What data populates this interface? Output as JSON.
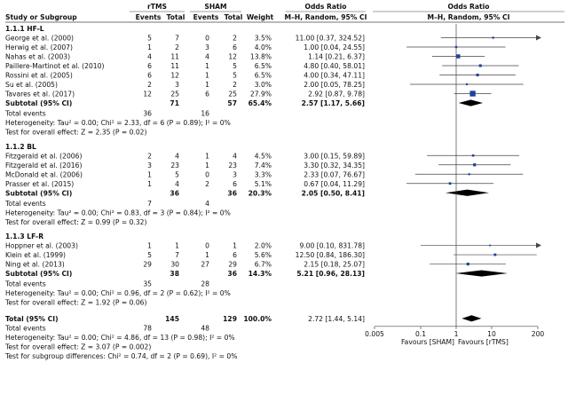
{
  "chart_data": {
    "type": "forest",
    "headers": {
      "group_rtms": "rTMS",
      "group_sham": "SHAM",
      "group_or_left": "Odds Ratio",
      "group_or_right": "Odds Ratio",
      "study": "Study or Subgroup",
      "events": "Events",
      "total": "Total",
      "events2": "Events",
      "total2": "Total",
      "weight": "Weight",
      "method_left": "M–H, Random, 95% CI",
      "method_right": "M–H, Random, 95% CI"
    },
    "subgroups": [
      {
        "label": "1.1.1 HF-L",
        "studies": [
          {
            "name": "George et al. (2000)",
            "e1": "5",
            "n1": "7",
            "e2": "0",
            "n2": "2",
            "w": "3.5%",
            "ci": "11.00 [0.37, 324.52]",
            "or": 11.0,
            "lo": 0.37,
            "hi": 324.52
          },
          {
            "name": "Herwig et al. (2007)",
            "e1": "1",
            "n1": "2",
            "e2": "3",
            "n2": "6",
            "w": "4.0%",
            "ci": "1.00 [0.04, 24.55]",
            "or": 1.0,
            "lo": 0.04,
            "hi": 24.55
          },
          {
            "name": "Nahas et al. (2003)",
            "e1": "4",
            "n1": "11",
            "e2": "4",
            "n2": "12",
            "w": "13.8%",
            "ci": "1.14 [0.21, 6.37]",
            "or": 1.14,
            "lo": 0.21,
            "hi": 6.37
          },
          {
            "name": "Paillere-Martinot et al. (2010)",
            "e1": "6",
            "n1": "11",
            "e2": "1",
            "n2": "5",
            "w": "6.5%",
            "ci": "4.80 [0.40, 58.01]",
            "or": 4.8,
            "lo": 0.4,
            "hi": 58.01
          },
          {
            "name": "Rossini et al. (2005)",
            "e1": "6",
            "n1": "12",
            "e2": "1",
            "n2": "5",
            "w": "6.5%",
            "ci": "4.00 [0.34, 47.11]",
            "or": 4.0,
            "lo": 0.34,
            "hi": 47.11
          },
          {
            "name": "Su et al. (2005)",
            "e1": "2",
            "n1": "3",
            "e2": "1",
            "n2": "2",
            "w": "3.0%",
            "ci": "2.00 [0.05, 78.25]",
            "or": 2.0,
            "lo": 0.05,
            "hi": 78.25
          },
          {
            "name": "Tavares et al. (2017)",
            "e1": "12",
            "n1": "25",
            "e2": "6",
            "n2": "25",
            "w": "27.9%",
            "ci": "2.92 [0.87, 9.78]",
            "or": 2.92,
            "lo": 0.87,
            "hi": 9.78
          }
        ],
        "subtotal": {
          "label": "Subtotal (95% CI)",
          "n1": "71",
          "n2": "57",
          "w": "65.4%",
          "ci": "2.57 [1.17, 5.66]",
          "or": 2.57,
          "lo": 1.17,
          "hi": 5.66
        },
        "events_label": "Total events",
        "ev1": "36",
        "ev2": "16",
        "heterogeneity": "Heterogeneity: Tau² = 0.00; Chi² = 2.33, df = 6 (P = 0.89); I² = 0%",
        "overall": "Test for overall effect: Z = 2.35 (P = 0.02)"
      },
      {
        "label": "1.1.2 BL",
        "studies": [
          {
            "name": "Fitzgerald et al. (2006)",
            "e1": "2",
            "n1": "4",
            "e2": "1",
            "n2": "4",
            "w": "4.5%",
            "ci": "3.00 [0.15, 59.89]",
            "or": 3.0,
            "lo": 0.15,
            "hi": 59.89
          },
          {
            "name": "Fitzgerald et al. (2016)",
            "e1": "3",
            "n1": "23",
            "e2": "1",
            "n2": "23",
            "w": "7.4%",
            "ci": "3.30 [0.32, 34.35]",
            "or": 3.3,
            "lo": 0.32,
            "hi": 34.35
          },
          {
            "name": "McDonald et al. (2006)",
            "e1": "1",
            "n1": "5",
            "e2": "0",
            "n2": "3",
            "w": "3.3%",
            "ci": "2.33 [0.07, 76.67]",
            "or": 2.33,
            "lo": 0.07,
            "hi": 76.67
          },
          {
            "name": "Prasser et al. (2015)",
            "e1": "1",
            "n1": "4",
            "e2": "2",
            "n2": "6",
            "w": "5.1%",
            "ci": "0.67 [0.04, 11.29]",
            "or": 0.67,
            "lo": 0.04,
            "hi": 11.29
          }
        ],
        "subtotal": {
          "label": "Subtotal (95% CI)",
          "n1": "36",
          "n2": "36",
          "w": "20.3%",
          "ci": "2.05 [0.50, 8.41]",
          "or": 2.05,
          "lo": 0.5,
          "hi": 8.41
        },
        "events_label": "Total events",
        "ev1": "7",
        "ev2": "4",
        "heterogeneity": "Heterogeneity: Tau² = 0.00; Chi² = 0.83, df = 3 (P = 0.84); I² = 0%",
        "overall": "Test for overall effect: Z = 0.99 (P = 0.32)"
      },
      {
        "label": "1.1.3 LF-R",
        "studies": [
          {
            "name": "Hoppner et al. (2003)",
            "e1": "1",
            "n1": "1",
            "e2": "0",
            "n2": "1",
            "w": "2.0%",
            "ci": "9.00 [0.10, 831.78]",
            "or": 9.0,
            "lo": 0.1,
            "hi": 831.78
          },
          {
            "name": "Klein et al. (1999)",
            "e1": "5",
            "n1": "7",
            "e2": "1",
            "n2": "6",
            "w": "5.6%",
            "ci": "12.50 [0.84, 186.30]",
            "or": 12.5,
            "lo": 0.84,
            "hi": 186.3
          },
          {
            "name": "Ning et al. (2013)",
            "e1": "29",
            "n1": "30",
            "e2": "27",
            "n2": "29",
            "w": "6.7%",
            "ci": "2.15 [0.18, 25.07]",
            "or": 2.15,
            "lo": 0.18,
            "hi": 25.07
          }
        ],
        "subtotal": {
          "label": "Subtotal (95% CI)",
          "n1": "38",
          "n2": "36",
          "w": "14.3%",
          "ci": "5.21 [0.96, 28.13]",
          "or": 5.21,
          "lo": 0.96,
          "hi": 28.13
        },
        "events_label": "Total events",
        "ev1": "35",
        "ev2": "28",
        "heterogeneity": "Heterogeneity: Tau² = 0.00; Chi² = 0.96, df = 2 (P = 0.62); I² = 0%",
        "overall": "Test for overall effect: Z = 1.92 (P = 0.06)"
      }
    ],
    "total": {
      "label": "Total (95% CI)",
      "n1": "145",
      "n2": "129",
      "w": "100.0%",
      "ci": "2.72 [1.44, 5.14]",
      "or": 2.72,
      "lo": 1.44,
      "hi": 5.14,
      "events_label": "Total events",
      "ev1": "78",
      "ev2": "48",
      "heterogeneity": "Heterogeneity: Tau² = 0.00; Chi² = 4.86, df = 13 (P = 0.98); I² = 0%",
      "overall": "Test for overall effect: Z = 3.07 (P = 0.002)",
      "subgroup_diff": "Test for subgroup differences: Chi² = 0.74, df = 2 (P = 0.69), I² = 0%"
    },
    "axis": {
      "scale": "log",
      "range": [
        0.005,
        200
      ],
      "ticks": [
        0.005,
        0.1,
        1,
        10,
        200
      ],
      "tick_labels": [
        "0.005",
        "0.1",
        "1",
        "10",
        "200"
      ],
      "favours_left": "Favours [SHAM]",
      "favours_right": "Favours [rTMS]"
    },
    "colors": {
      "line": "#444444",
      "marker": "#1f3f9e",
      "diamond": "#000000",
      "text": "#111111"
    }
  }
}
